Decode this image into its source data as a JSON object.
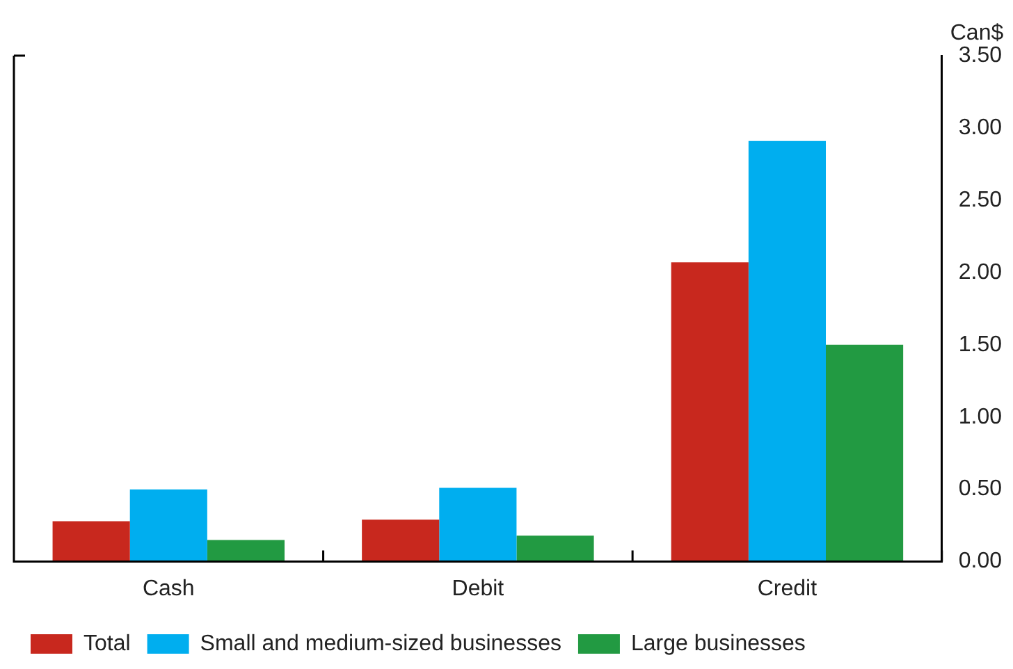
{
  "chart_data": {
    "type": "bar",
    "ylabel": "Can$",
    "categories": [
      "Cash",
      "Debit",
      "Credit"
    ],
    "series": [
      {
        "name": "Total",
        "color": "#c8281e",
        "values": [
          0.28,
          0.29,
          2.07
        ]
      },
      {
        "name": "Small and medium-sized businesses",
        "color": "#00aeef",
        "values": [
          0.5,
          0.51,
          2.91
        ]
      },
      {
        "name": "Large businesses",
        "color": "#229a42",
        "values": [
          0.15,
          0.18,
          1.5
        ]
      }
    ],
    "ylim": [
      0,
      3.5
    ],
    "yticks": [
      {
        "value": 0,
        "label": "0.00"
      },
      {
        "value": 0.5,
        "label": "0.50"
      },
      {
        "value": 1,
        "label": "1.00"
      },
      {
        "value": 1.5,
        "label": "1.50"
      },
      {
        "value": 2,
        "label": "2.00"
      },
      {
        "value": 2.5,
        "label": "2.50"
      },
      {
        "value": 3,
        "label": "3.00"
      },
      {
        "value": 3.5,
        "label": "3.50"
      }
    ],
    "grid": false,
    "legend": "bottom"
  }
}
